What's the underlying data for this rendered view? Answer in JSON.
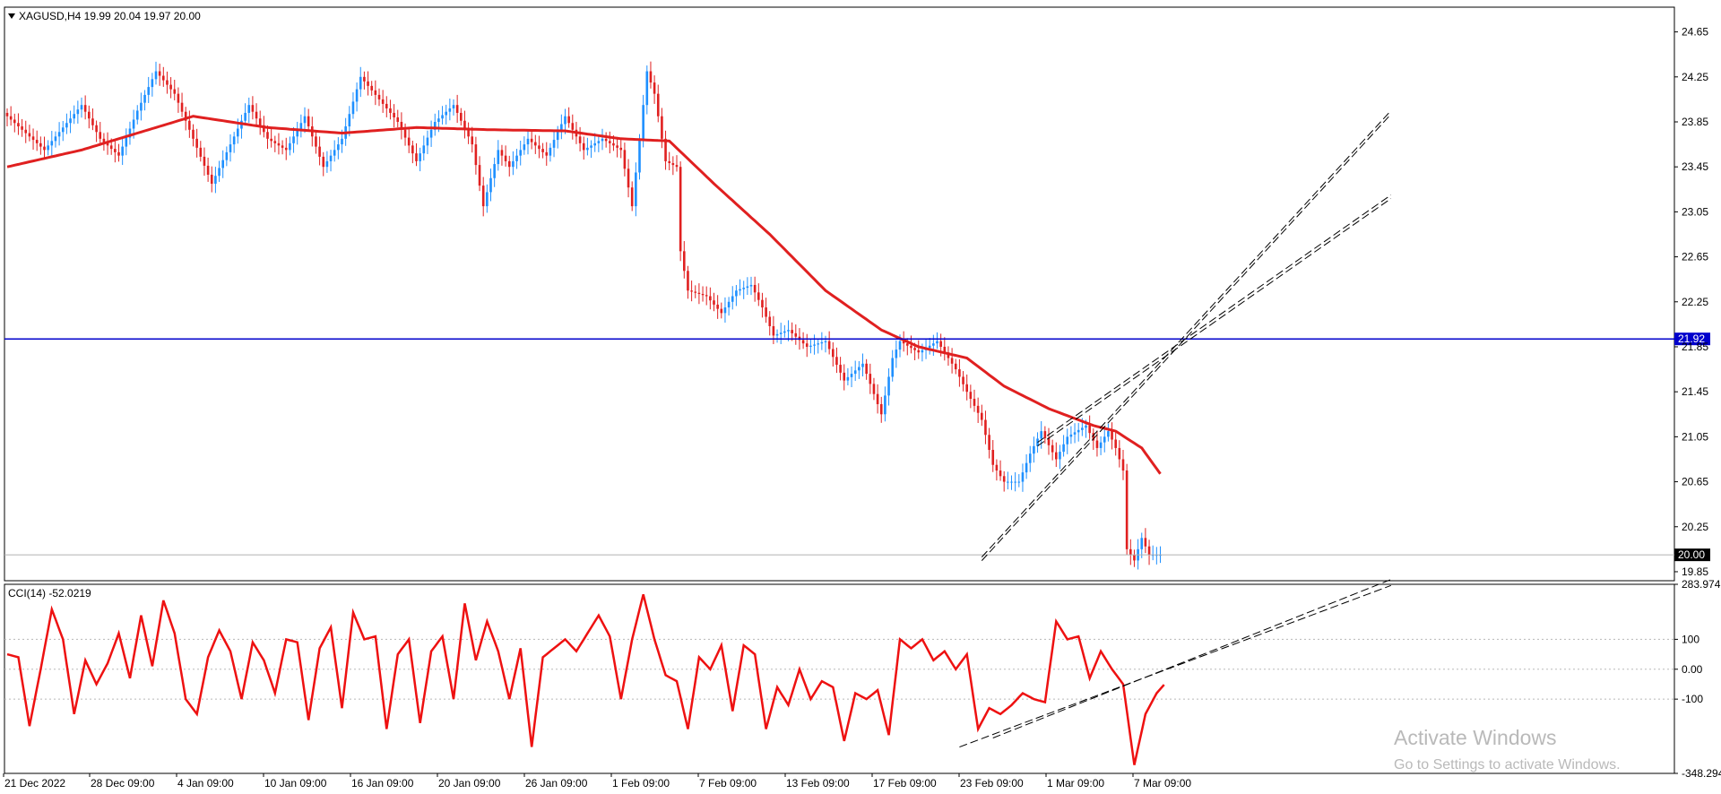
{
  "main_panel": {
    "info": "XAGUSD,H4  19.99 20.04 19.97 20.00",
    "menu_icon": "dropdown-triangle-icon"
  },
  "cci_panel": {
    "info": "CCI(14) -52.0219"
  },
  "watermark": {
    "line1": "Activate Windows",
    "line2": "Go to Settings to activate Windows."
  },
  "colors": {
    "bull": "#1e90ff",
    "bear": "#e02020",
    "ma": "#e02020",
    "cci": "#ee1111",
    "hline": "#0000cc",
    "trend": "#000000",
    "price_tag_blue": "#0000cc",
    "price_tag_black": "#000000"
  },
  "chart_data": [
    {
      "type": "candlestick",
      "symbol": "XAGUSD",
      "timeframe": "H4",
      "last_ohlc": {
        "open": 19.99,
        "high": 20.04,
        "low": 19.97,
        "close": 20.0
      },
      "y_ticks": [
        "24.65",
        "24.25",
        "23.85",
        "23.45",
        "23.05",
        "22.65",
        "22.25",
        "21.85",
        "21.45",
        "21.05",
        "20.65",
        "20.25",
        "19.85"
      ],
      "ylim": [
        19.77,
        24.87
      ],
      "x_ticks": [
        "21 Dec 2022",
        "28 Dec 09:00",
        "4 Jan 09:00",
        "10 Jan 09:00",
        "16 Jan 09:00",
        "20 Jan 09:00",
        "26 Jan 09:00",
        "1 Feb 09:00",
        "7 Feb 09:00",
        "13 Feb 09:00",
        "17 Feb 09:00",
        "23 Feb 09:00",
        "1 Mar 09:00",
        "7 Mar 09:00"
      ],
      "close_anchors": [
        [
          0,
          23.9
        ],
        [
          5,
          23.75
        ],
        [
          10,
          23.6
        ],
        [
          15,
          23.8
        ],
        [
          20,
          24.0
        ],
        [
          25,
          23.7
        ],
        [
          30,
          23.55
        ],
        [
          35,
          23.95
        ],
        [
          40,
          24.3
        ],
        [
          45,
          24.1
        ],
        [
          50,
          23.7
        ],
        [
          55,
          23.3
        ],
        [
          60,
          23.65
        ],
        [
          65,
          24.0
        ],
        [
          70,
          23.7
        ],
        [
          75,
          23.6
        ],
        [
          80,
          23.9
        ],
        [
          85,
          23.45
        ],
        [
          90,
          23.7
        ],
        [
          95,
          24.25
        ],
        [
          100,
          24.05
        ],
        [
          105,
          23.85
        ],
        [
          110,
          23.5
        ],
        [
          115,
          23.85
        ],
        [
          120,
          24.0
        ],
        [
          125,
          23.65
        ],
        [
          128,
          23.1
        ],
        [
          132,
          23.6
        ],
        [
          135,
          23.45
        ],
        [
          140,
          23.7
        ],
        [
          145,
          23.55
        ],
        [
          150,
          23.9
        ],
        [
          155,
          23.6
        ],
        [
          160,
          23.7
        ],
        [
          165,
          23.6
        ],
        [
          168,
          23.1
        ],
        [
          172,
          24.3
        ],
        [
          174,
          24.1
        ],
        [
          177,
          23.5
        ],
        [
          180,
          23.45
        ],
        [
          181,
          22.7
        ],
        [
          183,
          22.35
        ],
        [
          188,
          22.3
        ],
        [
          192,
          22.15
        ],
        [
          196,
          22.35
        ],
        [
          200,
          22.4
        ],
        [
          203,
          22.2
        ],
        [
          206,
          21.95
        ],
        [
          210,
          22.0
        ],
        [
          215,
          21.85
        ],
        [
          220,
          21.9
        ],
        [
          225,
          21.55
        ],
        [
          230,
          21.7
        ],
        [
          235,
          21.25
        ],
        [
          238,
          21.75
        ],
        [
          240,
          21.9
        ],
        [
          245,
          21.8
        ],
        [
          250,
          21.9
        ],
        [
          255,
          21.65
        ],
        [
          258,
          21.45
        ],
        [
          262,
          21.2
        ],
        [
          265,
          20.8
        ],
        [
          268,
          20.65
        ],
        [
          272,
          20.65
        ],
        [
          275,
          20.9
        ],
        [
          278,
          21.1
        ],
        [
          282,
          20.85
        ],
        [
          285,
          21.05
        ],
        [
          290,
          21.15
        ],
        [
          293,
          20.95
        ],
        [
          296,
          21.1
        ],
        [
          298,
          20.95
        ],
        [
          300,
          20.75
        ],
        [
          301,
          20.05
        ],
        [
          303,
          19.95
        ],
        [
          305,
          20.15
        ],
        [
          307,
          20.0
        ],
        [
          310,
          20.0
        ]
      ],
      "ma_anchors": [
        [
          0,
          23.45
        ],
        [
          20,
          23.6
        ],
        [
          35,
          23.75
        ],
        [
          50,
          23.9
        ],
        [
          70,
          23.8
        ],
        [
          90,
          23.75
        ],
        [
          110,
          23.8
        ],
        [
          130,
          23.78
        ],
        [
          150,
          23.77
        ],
        [
          165,
          23.7
        ],
        [
          178,
          23.68
        ],
        [
          190,
          23.3
        ],
        [
          205,
          22.85
        ],
        [
          220,
          22.35
        ],
        [
          235,
          22.0
        ],
        [
          245,
          21.85
        ],
        [
          258,
          21.75
        ],
        [
          268,
          21.5
        ],
        [
          280,
          21.3
        ],
        [
          292,
          21.15
        ],
        [
          298,
          21.1
        ],
        [
          305,
          20.95
        ],
        [
          310,
          20.72
        ]
      ],
      "horizontal_level": {
        "value": 21.92,
        "label": "21.92"
      },
      "current_price": {
        "value": 20.0,
        "label": "20.00"
      },
      "trendlines": [
        {
          "from": [
            262,
            19.98
          ],
          "to": [
            372,
            23.95
          ]
        },
        {
          "from": [
            277,
            21.0
          ],
          "to": [
            372,
            23.2
          ]
        }
      ]
    },
    {
      "type": "line",
      "name": "CCI(14)",
      "last_value": -52.0219,
      "y_ticks": [
        "283.974",
        "100",
        "0.00",
        "-100",
        "-348.294"
      ],
      "ylim": [
        -348.294,
        283.974
      ],
      "levels": [
        100,
        0,
        -100
      ],
      "anchors": [
        [
          0,
          50
        ],
        [
          3,
          40
        ],
        [
          6,
          -190
        ],
        [
          9,
          0
        ],
        [
          12,
          200
        ],
        [
          15,
          100
        ],
        [
          18,
          -150
        ],
        [
          21,
          30
        ],
        [
          24,
          -50
        ],
        [
          27,
          20
        ],
        [
          30,
          120
        ],
        [
          33,
          -30
        ],
        [
          36,
          180
        ],
        [
          39,
          10
        ],
        [
          42,
          230
        ],
        [
          45,
          120
        ],
        [
          48,
          -100
        ],
        [
          51,
          -150
        ],
        [
          54,
          40
        ],
        [
          57,
          130
        ],
        [
          60,
          60
        ],
        [
          63,
          -100
        ],
        [
          66,
          90
        ],
        [
          69,
          30
        ],
        [
          72,
          -80
        ],
        [
          75,
          100
        ],
        [
          78,
          90
        ],
        [
          81,
          -170
        ],
        [
          84,
          70
        ],
        [
          87,
          140
        ],
        [
          90,
          -130
        ],
        [
          93,
          190
        ],
        [
          96,
          100
        ],
        [
          99,
          110
        ],
        [
          102,
          -200
        ],
        [
          105,
          50
        ],
        [
          108,
          100
        ],
        [
          111,
          -180
        ],
        [
          114,
          60
        ],
        [
          117,
          110
        ],
        [
          120,
          -100
        ],
        [
          123,
          220
        ],
        [
          126,
          30
        ],
        [
          129,
          160
        ],
        [
          132,
          60
        ],
        [
          135,
          -100
        ],
        [
          138,
          70
        ],
        [
          141,
          -260
        ],
        [
          144,
          40
        ],
        [
          147,
          70
        ],
        [
          150,
          100
        ],
        [
          153,
          60
        ],
        [
          156,
          120
        ],
        [
          159,
          180
        ],
        [
          162,
          110
        ],
        [
          165,
          -100
        ],
        [
          168,
          100
        ],
        [
          171,
          250
        ],
        [
          174,
          100
        ],
        [
          177,
          -20
        ],
        [
          180,
          -40
        ],
        [
          183,
          -200
        ],
        [
          186,
          40
        ],
        [
          189,
          0
        ],
        [
          192,
          80
        ],
        [
          195,
          -140
        ],
        [
          198,
          80
        ],
        [
          201,
          50
        ],
        [
          204,
          -200
        ],
        [
          207,
          -60
        ],
        [
          210,
          -120
        ],
        [
          213,
          0
        ],
        [
          216,
          -100
        ],
        [
          219,
          -40
        ],
        [
          222,
          -60
        ],
        [
          225,
          -240
        ],
        [
          228,
          -80
        ],
        [
          231,
          -100
        ],
        [
          234,
          -70
        ],
        [
          237,
          -220
        ],
        [
          240,
          100
        ],
        [
          243,
          70
        ],
        [
          246,
          100
        ],
        [
          249,
          30
        ],
        [
          252,
          60
        ],
        [
          255,
          0
        ],
        [
          258,
          50
        ],
        [
          261,
          -200
        ],
        [
          264,
          -130
        ],
        [
          267,
          -150
        ],
        [
          270,
          -120
        ],
        [
          273,
          -80
        ],
        [
          276,
          -100
        ],
        [
          279,
          -110
        ],
        [
          282,
          160
        ],
        [
          285,
          100
        ],
        [
          288,
          110
        ],
        [
          291,
          -30
        ],
        [
          294,
          60
        ],
        [
          297,
          0
        ],
        [
          300,
          -50
        ],
        [
          303,
          -320
        ],
        [
          306,
          -150
        ],
        [
          309,
          -80
        ],
        [
          311,
          -52
        ]
      ],
      "trendlines": [
        {
          "from": [
            256,
            -260
          ],
          "to": [
            372,
            280
          ]
        },
        {
          "from": [
            265,
            -230
          ],
          "to": [
            372,
            300
          ]
        }
      ]
    }
  ]
}
